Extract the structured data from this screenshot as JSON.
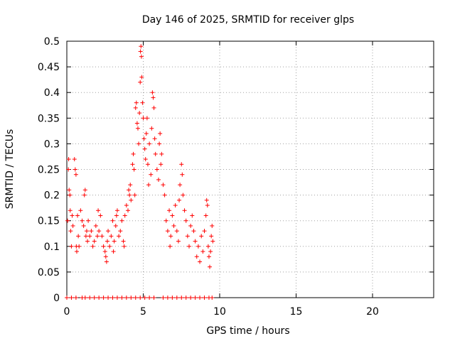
{
  "chart_data": {
    "type": "scatter",
    "title": "Day 146 of 2025, SRMTID for receiver glps",
    "xlabel": "GPS time / hours",
    "ylabel": "SRMTID / TECUs",
    "xlim": [
      0,
      24
    ],
    "ylim": [
      0,
      0.5
    ],
    "x_ticks": [
      "0",
      "5",
      "10",
      "15",
      "20"
    ],
    "y_ticks": [
      "0",
      "0.05",
      "0.1",
      "0.15",
      "0.2",
      "0.25",
      "0.3",
      "0.35",
      "0.4",
      "0.45",
      "0.5"
    ],
    "grid": true,
    "marker": "plus",
    "series_color": "#ff0000",
    "series": [
      {
        "points": [
          [
            0.05,
            0.15
          ],
          [
            0.1,
            0.25
          ],
          [
            0.12,
            0.27
          ],
          [
            0.15,
            0.21
          ],
          [
            0.2,
            0.2
          ],
          [
            0.22,
            0.17
          ],
          [
            0.25,
            0.13
          ],
          [
            0.3,
            0.1
          ],
          [
            0.35,
            0.16
          ],
          [
            0.4,
            0.14
          ],
          [
            0.5,
            0.27
          ],
          [
            0.55,
            0.25
          ],
          [
            0.6,
            0.24
          ],
          [
            0.62,
            0.1
          ],
          [
            0.65,
            0.09
          ],
          [
            0.7,
            0.16
          ],
          [
            0.75,
            0.12
          ],
          [
            0.8,
            0.1
          ],
          [
            0.9,
            0.17
          ],
          [
            1.0,
            0.15
          ],
          [
            1.1,
            0.14
          ],
          [
            1.15,
            0.2
          ],
          [
            1.2,
            0.21
          ],
          [
            1.25,
            0.12
          ],
          [
            1.3,
            0.13
          ],
          [
            1.35,
            0.11
          ],
          [
            1.4,
            0.15
          ],
          [
            1.5,
            0.12
          ],
          [
            1.6,
            0.13
          ],
          [
            1.7,
            0.1
          ],
          [
            1.8,
            0.11
          ],
          [
            1.9,
            0.14
          ],
          [
            2.0,
            0.12
          ],
          [
            2.05,
            0.17
          ],
          [
            2.1,
            0.13
          ],
          [
            2.2,
            0.16
          ],
          [
            2.3,
            0.12
          ],
          [
            2.4,
            0.1
          ],
          [
            2.5,
            0.09
          ],
          [
            2.55,
            0.08
          ],
          [
            2.6,
            0.07
          ],
          [
            2.65,
            0.11
          ],
          [
            2.7,
            0.13
          ],
          [
            2.8,
            0.1
          ],
          [
            2.9,
            0.12
          ],
          [
            3.0,
            0.15
          ],
          [
            3.05,
            0.09
          ],
          [
            3.1,
            0.11
          ],
          [
            3.2,
            0.14
          ],
          [
            3.25,
            0.16
          ],
          [
            3.3,
            0.17
          ],
          [
            3.4,
            0.12
          ],
          [
            3.5,
            0.13
          ],
          [
            3.6,
            0.15
          ],
          [
            3.7,
            0.11
          ],
          [
            3.75,
            0.1
          ],
          [
            3.8,
            0.16
          ],
          [
            3.9,
            0.18
          ],
          [
            4.0,
            0.17
          ],
          [
            4.05,
            0.21
          ],
          [
            4.1,
            0.2
          ],
          [
            4.15,
            0.22
          ],
          [
            4.2,
            0.19
          ],
          [
            4.3,
            0.26
          ],
          [
            4.35,
            0.28
          ],
          [
            4.4,
            0.25
          ],
          [
            4.45,
            0.2
          ],
          [
            4.5,
            0.37
          ],
          [
            4.55,
            0.38
          ],
          [
            4.6,
            0.34
          ],
          [
            4.65,
            0.33
          ],
          [
            4.7,
            0.3
          ],
          [
            4.75,
            0.36
          ],
          [
            4.8,
            0.42
          ],
          [
            4.82,
            0.48
          ],
          [
            4.85,
            0.49
          ],
          [
            4.88,
            0.47
          ],
          [
            4.9,
            0.43
          ],
          [
            4.95,
            0.38
          ],
          [
            5.0,
            0.35
          ],
          [
            5.05,
            0.31
          ],
          [
            5.1,
            0.29
          ],
          [
            5.15,
            0.27
          ],
          [
            5.2,
            0.32
          ],
          [
            5.25,
            0.35
          ],
          [
            5.3,
            0.26
          ],
          [
            5.35,
            0.22
          ],
          [
            5.4,
            0.3
          ],
          [
            5.5,
            0.24
          ],
          [
            5.55,
            0.33
          ],
          [
            5.6,
            0.4
          ],
          [
            5.65,
            0.39
          ],
          [
            5.7,
            0.37
          ],
          [
            5.75,
            0.31
          ],
          [
            5.8,
            0.28
          ],
          [
            5.9,
            0.25
          ],
          [
            6.0,
            0.23
          ],
          [
            6.05,
            0.3
          ],
          [
            6.1,
            0.32
          ],
          [
            6.15,
            0.26
          ],
          [
            6.2,
            0.28
          ],
          [
            6.3,
            0.22
          ],
          [
            6.4,
            0.2
          ],
          [
            6.5,
            0.15
          ],
          [
            6.6,
            0.13
          ],
          [
            6.7,
            0.17
          ],
          [
            6.75,
            0.1
          ],
          [
            6.8,
            0.12
          ],
          [
            6.9,
            0.16
          ],
          [
            7.0,
            0.14
          ],
          [
            7.1,
            0.18
          ],
          [
            7.2,
            0.13
          ],
          [
            7.3,
            0.11
          ],
          [
            7.35,
            0.19
          ],
          [
            7.4,
            0.22
          ],
          [
            7.5,
            0.26
          ],
          [
            7.55,
            0.24
          ],
          [
            7.6,
            0.2
          ],
          [
            7.7,
            0.17
          ],
          [
            7.8,
            0.15
          ],
          [
            7.9,
            0.12
          ],
          [
            8.0,
            0.1
          ],
          [
            8.1,
            0.14
          ],
          [
            8.2,
            0.16
          ],
          [
            8.3,
            0.13
          ],
          [
            8.4,
            0.11
          ],
          [
            8.5,
            0.08
          ],
          [
            8.6,
            0.1
          ],
          [
            8.7,
            0.07
          ],
          [
            8.8,
            0.12
          ],
          [
            8.9,
            0.09
          ],
          [
            9.0,
            0.13
          ],
          [
            9.1,
            0.16
          ],
          [
            9.15,
            0.19
          ],
          [
            9.2,
            0.18
          ],
          [
            9.25,
            0.1
          ],
          [
            9.3,
            0.08
          ],
          [
            9.35,
            0.06
          ],
          [
            9.4,
            0.09
          ],
          [
            9.45,
            0.12
          ],
          [
            9.5,
            0.14
          ],
          [
            9.55,
            0.11
          ],
          [
            0.0,
            0
          ],
          [
            0.3,
            0
          ],
          [
            0.6,
            0
          ],
          [
            1.0,
            0
          ],
          [
            1.2,
            0
          ],
          [
            1.5,
            0
          ],
          [
            1.8,
            0
          ],
          [
            2.1,
            0
          ],
          [
            2.4,
            0
          ],
          [
            2.7,
            0
          ],
          [
            3.0,
            0
          ],
          [
            3.3,
            0
          ],
          [
            3.6,
            0
          ],
          [
            3.9,
            0
          ],
          [
            4.2,
            0
          ],
          [
            4.5,
            0
          ],
          [
            4.8,
            0
          ],
          [
            5.1,
            0
          ],
          [
            5.4,
            0
          ],
          [
            5.7,
            0
          ],
          [
            6.3,
            0
          ],
          [
            6.6,
            0
          ],
          [
            6.9,
            0
          ],
          [
            7.2,
            0
          ],
          [
            7.5,
            0
          ],
          [
            7.8,
            0
          ],
          [
            8.1,
            0
          ],
          [
            8.4,
            0
          ],
          [
            8.7,
            0
          ],
          [
            9.0,
            0
          ],
          [
            9.3,
            0
          ],
          [
            9.5,
            0
          ]
        ]
      }
    ]
  }
}
